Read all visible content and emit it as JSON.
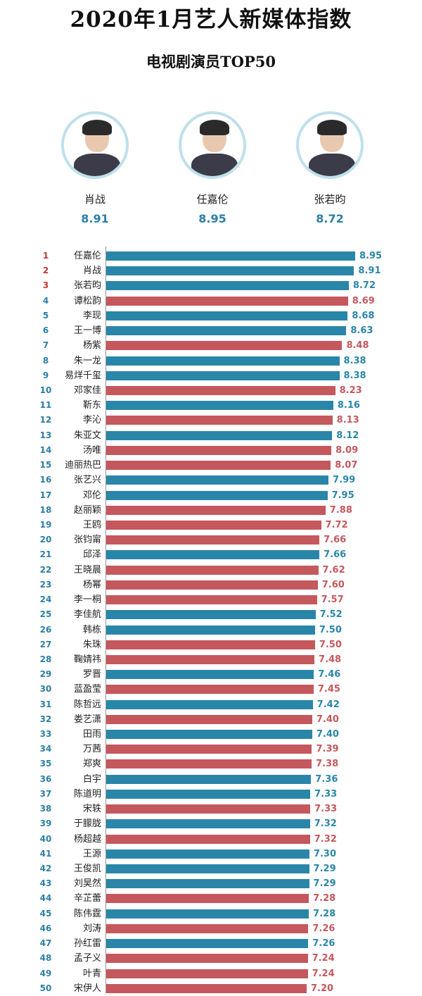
{
  "header": {
    "title": "2020年1月艺人新媒体指数",
    "subtitle": "电视剧演员TOP50"
  },
  "top3": [
    {
      "name": "肖战",
      "score": "8.91"
    },
    {
      "name": "任嘉伦",
      "score": "8.95"
    },
    {
      "name": "张若昀",
      "score": "8.72"
    }
  ],
  "colors": {
    "blue": "#2a86a8",
    "red": "#c4585d",
    "score_blue": "#2c7fa5"
  },
  "chart_data": {
    "type": "bar",
    "orientation": "horizontal",
    "title": "电视剧演员TOP50",
    "xlim": [
      0,
      9
    ],
    "categories": [
      "任嘉伦",
      "肖战",
      "张若昀",
      "谭松韵",
      "李现",
      "王一博",
      "杨紫",
      "朱一龙",
      "易烊千玺",
      "邓家佳",
      "靳东",
      "李沁",
      "朱亚文",
      "汤唯",
      "迪丽热巴",
      "张艺兴",
      "邓伦",
      "赵丽颖",
      "王鸥",
      "张钧甯",
      "邱泽",
      "王晓晨",
      "杨幂",
      "李一桐",
      "李佳航",
      "韩栋",
      "朱珠",
      "鞠婧祎",
      "罗晋",
      "蓝盈莹",
      "陈哲远",
      "娄艺潇",
      "田雨",
      "万茜",
      "郑爽",
      "白宇",
      "陈道明",
      "宋轶",
      "于朦胧",
      "杨超越",
      "王源",
      "王俊凯",
      "刘昊然",
      "辛芷蕾",
      "陈伟霆",
      "刘涛",
      "孙红雷",
      "孟子义",
      "叶青",
      "宋伊人"
    ],
    "values": [
      8.95,
      8.91,
      8.72,
      8.69,
      8.68,
      8.63,
      8.48,
      8.38,
      8.38,
      8.23,
      8.16,
      8.13,
      8.12,
      8.09,
      8.07,
      7.99,
      7.95,
      7.88,
      7.72,
      7.66,
      7.66,
      7.62,
      7.6,
      7.57,
      7.52,
      7.5,
      7.5,
      7.48,
      7.46,
      7.45,
      7.42,
      7.4,
      7.4,
      7.39,
      7.38,
      7.36,
      7.33,
      7.33,
      7.32,
      7.32,
      7.3,
      7.29,
      7.29,
      7.28,
      7.28,
      7.26,
      7.26,
      7.24,
      7.24,
      7.2
    ],
    "value_labels": [
      "8.95",
      "8.91",
      "8.72",
      "8.69",
      "8.68",
      "8.63",
      "8.48",
      "8.38",
      "8.38",
      "8.23",
      "8.16",
      "8.13",
      "8.12",
      "8.09",
      "8.07",
      "7.99",
      "7.95",
      "7.88",
      "7.72",
      "7.66",
      "7.66",
      "7.62",
      "7.60",
      "7.57",
      "7.52",
      "7.50",
      "7.50",
      "7.48",
      "7.46",
      "7.45",
      "7.42",
      "7.40",
      "7.40",
      "7.39",
      "7.38",
      "7.36",
      "7.33",
      "7.33",
      "7.32",
      "7.32",
      "7.30",
      "7.29",
      "7.29",
      "7.28",
      "7.28",
      "7.26",
      "7.26",
      "7.24",
      "7.24",
      "7.20"
    ],
    "bar_colors": [
      "blue",
      "blue",
      "blue",
      "red",
      "blue",
      "blue",
      "red",
      "blue",
      "blue",
      "red",
      "blue",
      "red",
      "blue",
      "red",
      "red",
      "blue",
      "blue",
      "red",
      "red",
      "red",
      "blue",
      "red",
      "red",
      "red",
      "blue",
      "blue",
      "red",
      "red",
      "blue",
      "red",
      "blue",
      "red",
      "blue",
      "red",
      "red",
      "blue",
      "blue",
      "red",
      "blue",
      "red",
      "blue",
      "blue",
      "blue",
      "red",
      "blue",
      "red",
      "blue",
      "red",
      "red",
      "red"
    ],
    "ranks": [
      "1",
      "2",
      "3",
      "4",
      "5",
      "6",
      "7",
      "8",
      "9",
      "10",
      "11",
      "12",
      "13",
      "14",
      "15",
      "16",
      "17",
      "18",
      "19",
      "20",
      "21",
      "22",
      "23",
      "24",
      "25",
      "26",
      "27",
      "28",
      "29",
      "30",
      "31",
      "32",
      "33",
      "34",
      "35",
      "36",
      "37",
      "38",
      "39",
      "40",
      "41",
      "42",
      "43",
      "44",
      "45",
      "46",
      "47",
      "48",
      "49",
      "50"
    ]
  }
}
